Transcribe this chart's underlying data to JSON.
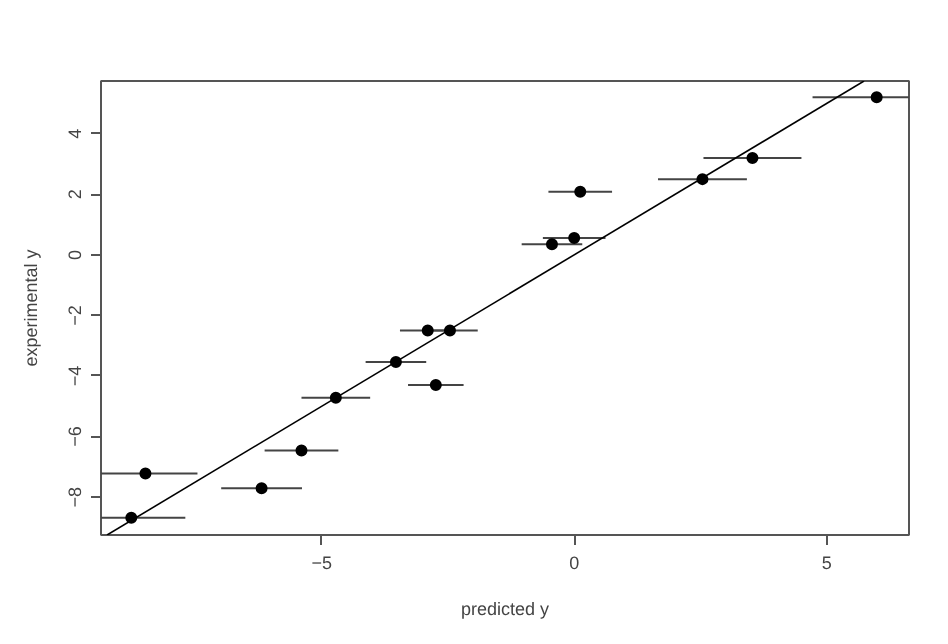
{
  "chart_data": {
    "type": "scatter",
    "xlabel": "predicted y",
    "ylabel": "experimental y",
    "xlim": [
      -9.37,
      6.63
    ],
    "ylim": [
      -9.25,
      5.74
    ],
    "xticks": [
      -5,
      0,
      5
    ],
    "yticks": [
      -8,
      -6,
      -4,
      -2,
      0,
      2,
      4
    ],
    "grid": false,
    "series": [
      {
        "marker": "circle",
        "color": "#000000",
        "x": [
          -8.77,
          -8.49,
          -6.19,
          -5.4,
          -4.72,
          -3.53,
          -2.9,
          -2.46,
          -2.74,
          -0.44,
          0.0,
          0.12,
          2.54,
          3.53,
          5.99
        ],
        "values": [
          -8.68,
          -7.22,
          -7.71,
          -6.46,
          -4.72,
          -3.54,
          -2.5,
          -2.5,
          -4.3,
          0.35,
          0.56,
          2.08,
          2.5,
          3.2,
          5.2
        ],
        "xerrors": [
          [
            -9.37,
            -7.7
          ],
          [
            -9.37,
            -7.46
          ],
          0.8,
          0.73,
          0.68,
          0.6,
          0.55,
          0.55,
          0.55,
          0.6,
          0.62,
          0.63,
          0.88,
          0.97,
          [
            4.72,
            6.63
          ]
        ]
      },
      {
        "type": "line",
        "color": "#000000",
        "x": [
          -9.25,
          5.74
        ],
        "values": [
          -9.25,
          5.74
        ]
      }
    ]
  }
}
